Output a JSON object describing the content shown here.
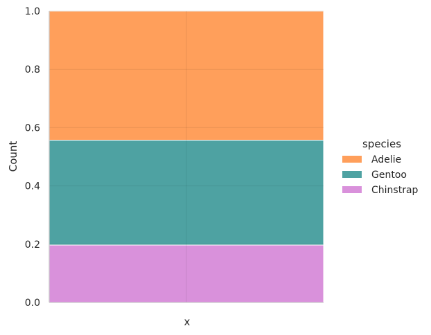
{
  "chart_data": {
    "type": "bar",
    "stacked": true,
    "normalized": true,
    "xlabel": "x",
    "ylabel": "Count",
    "ylim": [
      0,
      1
    ],
    "yticks": [
      0.0,
      0.2,
      0.4,
      0.6,
      0.8,
      1.0
    ],
    "ytick_labels": [
      "0.0",
      "0.2",
      "0.4",
      "0.6",
      "0.8",
      "1.0"
    ],
    "grid": true,
    "legend_title": "species",
    "legend_position": "right",
    "series": [
      {
        "name": "Adelie",
        "lower": 0.557,
        "upper": 1.0,
        "color": "#ff7f24"
      },
      {
        "name": "Gentoo",
        "lower": 0.197,
        "upper": 0.557,
        "color": "#138383"
      },
      {
        "name": "Chinstrap",
        "lower": 0.0,
        "upper": 0.197,
        "color": "#cc6ccf"
      }
    ]
  }
}
